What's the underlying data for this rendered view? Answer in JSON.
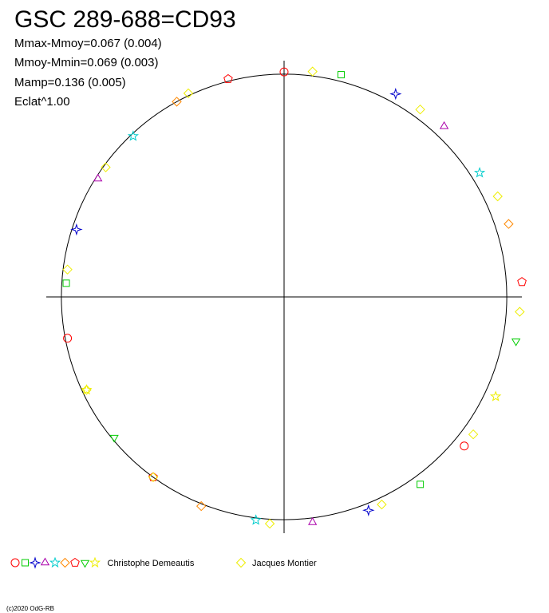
{
  "chart_data": {
    "type": "polar",
    "title": "GSC 289-688=CD93",
    "stats": [
      "Mmax-Mmoy=0.067 (0.004)",
      "Mmoy-Mmin=0.069 (0.003)",
      "Mamp=0.136 (0.005)",
      "Eclat^1.00"
    ],
    "rlim": [
      0,
      1.1
    ],
    "reference_circle": 1,
    "series": [
      {
        "name": "Christophe Demeautis",
        "colors": [
          "#ff0000",
          "#00cc00",
          "#0000cc",
          "#aa00aa",
          "#00cccc",
          "#ff8800",
          "#ff0000",
          "#00cc00",
          "#eeee00"
        ],
        "markers": [
          "circle",
          "square",
          "cross",
          "triangle",
          "star",
          "diamond",
          "pentagon",
          "triangle-down",
          "star"
        ],
        "x": [
          0,
          0.04,
          0.08,
          0.12,
          0.16,
          0.2,
          0.24,
          0.28,
          0.32,
          0.36,
          0.4,
          0.44,
          0.48,
          0.52,
          0.56,
          0.6,
          0.64,
          0.68,
          0.72,
          0.76,
          0.8,
          0.84,
          0.88,
          0.92,
          0.96
        ],
        "values": [
          1.01,
          1.03,
          1.04,
          1.05,
          1.04,
          1.06,
          1.07,
          1.06,
          1.05,
          1.05,
          1.04,
          1.03,
          1.02,
          1.01,
          1.01,
          1.0,
          0.99,
          0.98,
          0.99,
          0.98,
          0.98,
          0.99,
          0.99,
          1.0,
          1.01
        ]
      },
      {
        "name": "Jacques Montier",
        "colors": [
          "#eeee00"
        ],
        "markers": [
          "diamond"
        ],
        "x": [
          0.02,
          0.1,
          0.18,
          0.26,
          0.35,
          0.43,
          0.51,
          0.6,
          0.68,
          0.77,
          0.85,
          0.93
        ],
        "values": [
          1.02,
          1.04,
          1.06,
          1.06,
          1.05,
          1.03,
          1.02,
          1.0,
          0.98,
          0.98,
          0.99,
          1.01
        ]
      }
    ],
    "copyright": "(c)2020 OdG-RB"
  }
}
